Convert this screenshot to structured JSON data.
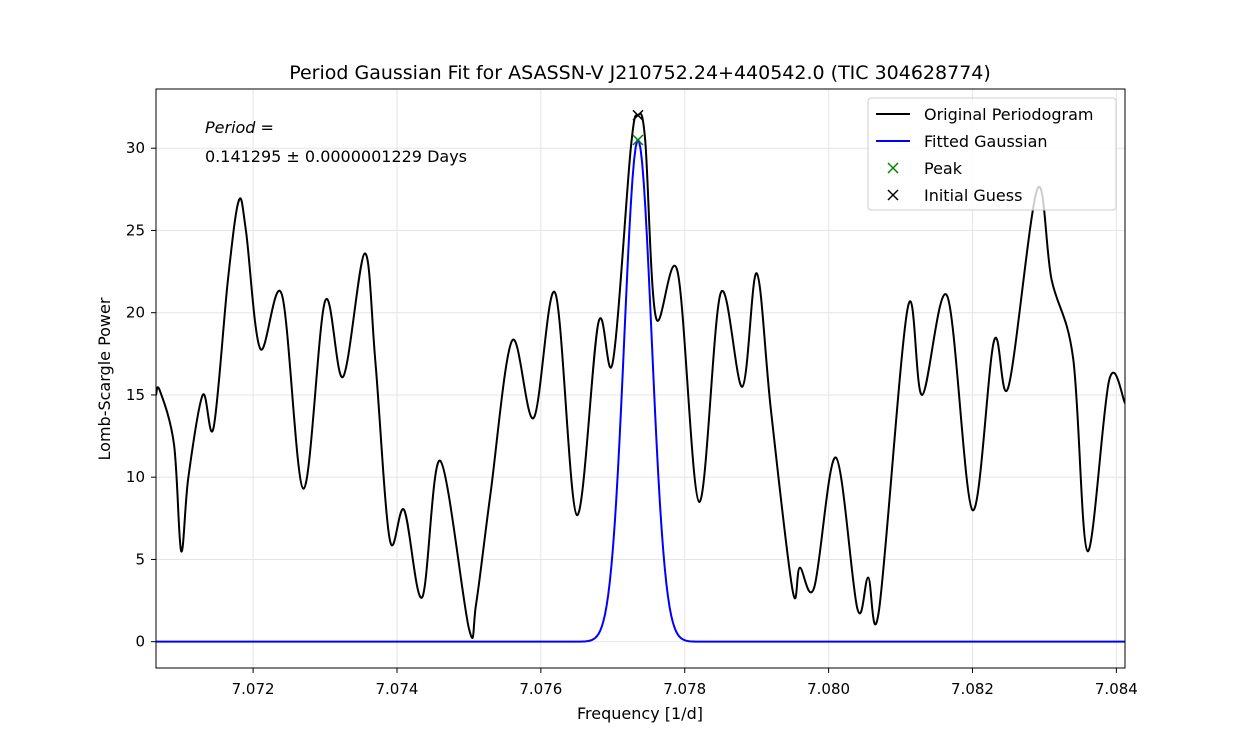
{
  "chart_data": {
    "type": "line",
    "title": "Period Gaussian Fit for ASASSN-V J210752.24+440542.0 (TIC 304628774)",
    "xlabel": "Frequency [1/d]",
    "ylabel": "Lomb-Scargle Power",
    "xlim": [
      7.07065,
      7.08412
    ],
    "ylim": [
      -1.6,
      33.6
    ],
    "xticks": [
      7.072,
      7.074,
      7.076,
      7.078,
      7.08,
      7.082,
      7.084
    ],
    "xtick_labels": [
      "7.072",
      "7.074",
      "7.076",
      "7.078",
      "7.080",
      "7.082",
      "7.084"
    ],
    "yticks": [
      0,
      5,
      10,
      15,
      20,
      25,
      30
    ],
    "ytick_labels": [
      "0",
      "5",
      "10",
      "15",
      "20",
      "25",
      "30"
    ],
    "grid": true,
    "legend_position": "top-right",
    "annotation": {
      "label": "Period",
      "equals": " =",
      "value": "0.141295 ± 0.0000001229 Days"
    },
    "series": [
      {
        "name": "Original Periodogram",
        "color": "#000000",
        "kind": "line",
        "x": [
          7.07065,
          7.0707,
          7.0709,
          7.071,
          7.0711,
          7.0713,
          7.07145,
          7.07165,
          7.0718,
          7.0719,
          7.0721,
          7.0724,
          7.0727,
          7.073,
          7.07325,
          7.07355,
          7.0737,
          7.0739,
          7.0741,
          7.07435,
          7.0746,
          7.075,
          7.0751,
          7.0753,
          7.0756,
          7.0759,
          7.0762,
          7.0765,
          7.0768,
          7.077,
          7.07725,
          7.07735,
          7.07745,
          7.0776,
          7.0779,
          7.0782,
          7.0785,
          7.0788,
          7.079,
          7.0792,
          7.0795,
          7.0796,
          7.0798,
          7.0801,
          7.0804,
          7.08055,
          7.0807,
          7.0811,
          7.0813,
          7.08165,
          7.082,
          7.0823,
          7.0825,
          7.0829,
          7.0831,
          7.0834,
          7.0836,
          7.0839,
          7.08412
        ],
        "y": [
          15.0,
          15.3,
          12.0,
          5.5,
          10.0,
          15.0,
          13.0,
          22.0,
          26.8,
          25.0,
          17.8,
          21.1,
          9.3,
          20.7,
          16.1,
          23.6,
          17.0,
          6.2,
          8.0,
          2.7,
          11.0,
          0.8,
          2.3,
          9.0,
          18.3,
          13.6,
          21.2,
          7.7,
          19.4,
          17.0,
          30.0,
          32.0,
          30.5,
          19.7,
          22.5,
          8.5,
          21.2,
          15.5,
          22.4,
          14.0,
          3.1,
          4.5,
          3.3,
          11.2,
          2.0,
          3.9,
          1.9,
          20.3,
          15.0,
          21.0,
          8.0,
          18.3,
          15.5,
          27.5,
          22.0,
          17.2,
          5.5,
          15.9,
          14.5
        ]
      },
      {
        "name": "Fitted Gaussian",
        "color": "#0000ff",
        "kind": "gaussian",
        "amplitude": 30.5,
        "mean": 7.07735,
        "sigma": 0.00019
      },
      {
        "name": "Peak",
        "color": "#008000",
        "kind": "marker",
        "x": [
          7.07735
        ],
        "y": [
          30.5
        ]
      },
      {
        "name": "Initial Guess",
        "color": "#000000",
        "kind": "marker",
        "x": [
          7.07735
        ],
        "y": [
          32.0
        ]
      }
    ]
  }
}
